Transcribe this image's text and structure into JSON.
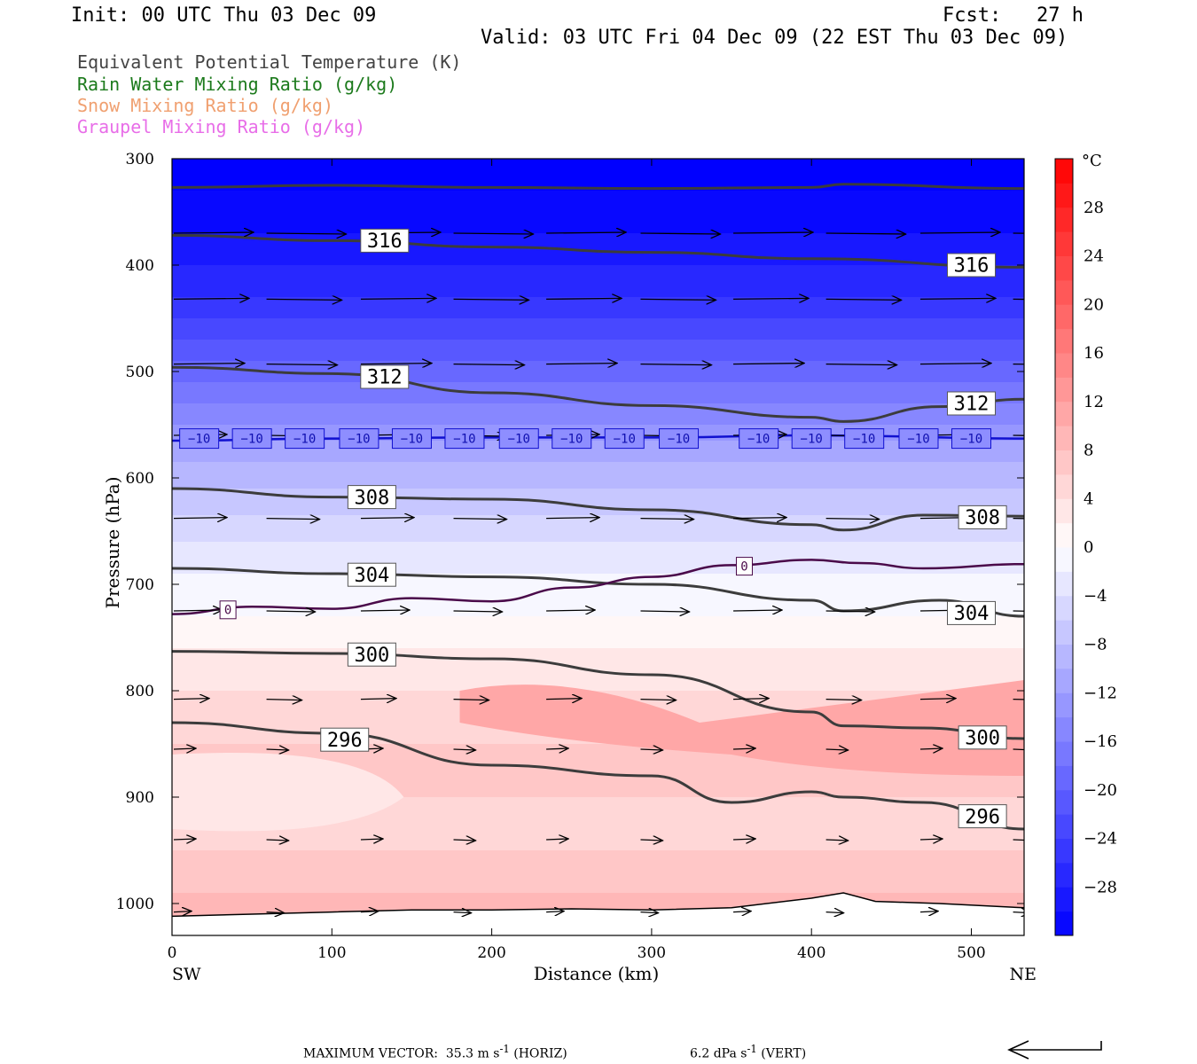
{
  "header": {
    "init": "Init: 00 UTC Thu 03 Dec 09",
    "fcst": "Fcst:   27 h",
    "valid": "Valid: 03 UTC Fri 04 Dec 09 (22 EST Thu 03 Dec 09)"
  },
  "legend": [
    {
      "label": "Equivalent Potential Temperature (K)",
      "color": "#444444"
    },
    {
      "label": "Rain Water Mixing Ratio (g/kg)",
      "color": "#1c7a1c"
    },
    {
      "label": "Snow Mixing Ratio (g/kg)",
      "color": "#f0a070"
    },
    {
      "label": "Graupel Mixing Ratio (g/kg)",
      "color": "#e86ee8"
    }
  ],
  "footer": {
    "max_vector_label": "MAXIMUM VECTOR:",
    "horiz_value": "35.3 m s",
    "horiz_suffix": "(HORIZ)",
    "vert_value": "6.2 dPa s",
    "vert_suffix": "(VERT)",
    "exponent": "-1"
  },
  "chart_data": {
    "type": "contour",
    "xlabel": "Distance (km)",
    "ylabel": "Pressure (hPa)",
    "x_ticks": [
      0,
      100,
      200,
      300,
      400,
      500
    ],
    "y_ticks": [
      300,
      400,
      500,
      600,
      700,
      800,
      900,
      1000
    ],
    "xlim": [
      0,
      533
    ],
    "ylim": [
      300,
      1030
    ],
    "x_end_labels": {
      "left": "SW",
      "right": "NE"
    },
    "colorbar": {
      "unit": "°C",
      "tick_labels": [
        "28",
        "24",
        "20",
        "16",
        "12",
        "8",
        "4",
        "0",
        "−4",
        "−8",
        "−12",
        "−16",
        "−20",
        "−24",
        "−28"
      ],
      "tick_values": [
        28,
        24,
        20,
        16,
        12,
        8,
        4,
        0,
        -4,
        -8,
        -12,
        -16,
        -20,
        -24,
        -28
      ],
      "levels": [
        -32,
        -30,
        -28,
        -26,
        -24,
        -22,
        -20,
        -18,
        -16,
        -14,
        -12,
        -10,
        -8,
        -6,
        -4,
        -2,
        0,
        2,
        4,
        6,
        8,
        10,
        12,
        14,
        16,
        18,
        20,
        22,
        24,
        26,
        28,
        30,
        32
      ]
    },
    "temperature_bands": [
      {
        "p": 300,
        "t": -33
      },
      {
        "p": 330,
        "t": -31
      },
      {
        "p": 370,
        "t": -29
      },
      {
        "p": 400,
        "t": -27
      },
      {
        "p": 430,
        "t": -25
      },
      {
        "p": 450,
        "t": -23
      },
      {
        "p": 470,
        "t": -21
      },
      {
        "p": 490,
        "t": -19
      },
      {
        "p": 510,
        "t": -17
      },
      {
        "p": 530,
        "t": -15
      },
      {
        "p": 550,
        "t": -13
      },
      {
        "p": 565,
        "t": -11
      },
      {
        "p": 585,
        "t": -9
      },
      {
        "p": 610,
        "t": -7
      },
      {
        "p": 635,
        "t": -5
      },
      {
        "p": 660,
        "t": -3
      },
      {
        "p": 690,
        "t": -1
      },
      {
        "p": 730,
        "t": 1
      },
      {
        "p": 760,
        "t": 3
      },
      {
        "p": 800,
        "t": 5
      },
      {
        "p": 850,
        "t": 7
      },
      {
        "p": 900,
        "t": 5
      },
      {
        "p": 950,
        "t": 7
      },
      {
        "p": 990,
        "t": 9
      },
      {
        "p": 1030,
        "t": 9
      }
    ],
    "theta_e_contours": [
      {
        "level": 320,
        "x": [
          0,
          100,
          200,
          300,
          400,
          420,
          533
        ],
        "p": [
          327,
          325,
          327,
          328,
          327,
          324,
          328
        ]
      },
      {
        "level": 316,
        "x": [
          0,
          100,
          200,
          300,
          400,
          533
        ],
        "p": [
          372,
          377,
          383,
          388,
          394,
          402
        ]
      },
      {
        "level": 312,
        "x": [
          0,
          100,
          200,
          300,
          400,
          420,
          480,
          533
        ],
        "p": [
          496,
          502,
          520,
          532,
          543,
          547,
          533,
          526
        ]
      },
      {
        "level": 308,
        "x": [
          0,
          100,
          200,
          300,
          400,
          420,
          470,
          533
        ],
        "p": [
          610,
          618,
          620,
          630,
          644,
          649,
          635,
          636
        ]
      },
      {
        "level": 304,
        "x": [
          0,
          100,
          200,
          300,
          400,
          420,
          480,
          533
        ],
        "p": [
          685,
          690,
          693,
          700,
          715,
          725,
          715,
          730
        ]
      },
      {
        "level": 300,
        "x": [
          0,
          100,
          200,
          300,
          400,
          420,
          470,
          533
        ],
        "p": [
          763,
          765,
          770,
          785,
          820,
          833,
          835,
          845
        ]
      },
      {
        "level": 296,
        "x": [
          0,
          100,
          200,
          300,
          350,
          400,
          420,
          470,
          533
        ],
        "p": [
          830,
          840,
          870,
          880,
          905,
          895,
          900,
          905,
          930
        ]
      }
    ],
    "theta_e_labels": [
      {
        "text": "316",
        "x": 133,
        "p": 377
      },
      {
        "text": "316",
        "x": 500,
        "p": 400
      },
      {
        "text": "312",
        "x": 133,
        "p": 505
      },
      {
        "text": "312",
        "x": 500,
        "p": 530
      },
      {
        "text": "308",
        "x": 125,
        "p": 618
      },
      {
        "text": "308",
        "x": 507,
        "p": 637
      },
      {
        "text": "304",
        "x": 125,
        "p": 691
      },
      {
        "text": "304",
        "x": 500,
        "p": 727
      },
      {
        "text": "300",
        "x": 125,
        "p": 766
      },
      {
        "text": "300",
        "x": 507,
        "p": 844
      },
      {
        "text": "296",
        "x": 108,
        "p": 846
      },
      {
        "text": "296",
        "x": 507,
        "p": 918
      }
    ],
    "isotherm_minus10": {
      "level": -10,
      "x": [
        0,
        100,
        200,
        300,
        400,
        533
      ],
      "p": [
        565,
        563,
        562,
        562,
        560,
        563
      ]
    },
    "isotherm_minus10_labels_x": [
      17,
      50,
      83,
      117,
      150,
      183,
      217,
      250,
      283,
      317,
      367,
      400,
      433,
      467,
      500
    ],
    "isotherm_minus10_label": "−10",
    "isotherm_0": {
      "level": 0,
      "x": [
        0,
        50,
        100,
        150,
        200,
        250,
        300,
        350,
        400,
        430,
        470,
        533
      ],
      "p": [
        728,
        721,
        723,
        713,
        716,
        703,
        693,
        682,
        677,
        680,
        685,
        681
      ]
    },
    "isotherm_0_labels": [
      {
        "text": "0",
        "x": 35,
        "p": 724
      },
      {
        "text": "0",
        "x": 358,
        "p": 683
      }
    ],
    "terrain": {
      "x": [
        0,
        50,
        100,
        150,
        200,
        250,
        300,
        350,
        400,
        420,
        440,
        480,
        533
      ],
      "p": [
        1012,
        1010,
        1008,
        1006,
        1006,
        1005,
        1006,
        1004,
        995,
        990,
        998,
        1000,
        1004
      ]
    },
    "wind_vectors": [
      {
        "p": 370,
        "x": [
          0,
          58,
          117,
          175,
          233,
          292,
          350,
          408,
          467,
          525
        ],
        "u": [
          1,
          1,
          1,
          1,
          1,
          1,
          1,
          1,
          1,
          1
        ],
        "len": 0.9
      },
      {
        "p": 432,
        "x": [
          0,
          58,
          117,
          175,
          233,
          292,
          350,
          408,
          467,
          525
        ],
        "u": [
          1,
          1,
          1,
          1,
          1,
          1,
          1,
          1,
          1,
          1
        ],
        "len": 0.85
      },
      {
        "p": 493,
        "x": [
          0,
          58,
          117,
          175,
          233,
          292,
          350,
          408,
          467,
          525
        ],
        "u": [
          1,
          1,
          1,
          1,
          1,
          1,
          1,
          1,
          1,
          1
        ],
        "len": 0.8
      },
      {
        "p": 560,
        "x": [
          0,
          58,
          117,
          175,
          233,
          292,
          350,
          408,
          467,
          525
        ],
        "u": [
          1,
          1,
          1,
          1,
          1,
          1,
          1,
          1,
          1,
          1
        ],
        "len": 0.6
      },
      {
        "p": 638,
        "x": [
          0,
          58,
          117,
          175,
          233,
          292,
          350,
          408,
          467,
          525
        ],
        "u": [
          1,
          1,
          1,
          1,
          1,
          1,
          1,
          1,
          1,
          1
        ],
        "len": 0.6
      },
      {
        "p": 725,
        "x": [
          0,
          58,
          117,
          175,
          233,
          292,
          350,
          408,
          467,
          525
        ],
        "u": [
          1,
          1,
          1,
          1,
          1,
          1,
          1,
          1,
          1,
          1
        ],
        "len": 0.55
      },
      {
        "p": 808,
        "x": [
          0,
          58,
          117,
          175,
          233,
          292,
          350,
          408,
          467,
          525
        ],
        "u": [
          1,
          1,
          1,
          1,
          1,
          1,
          1,
          1,
          1,
          1
        ],
        "len": 0.4
      },
      {
        "p": 855,
        "x": [
          0,
          58,
          117,
          175,
          233,
          292,
          350,
          408,
          467,
          525
        ],
        "u": [
          1,
          1,
          1,
          1,
          1,
          1,
          1,
          1,
          1,
          1
        ],
        "len": 0.25
      },
      {
        "p": 940,
        "x": [
          0,
          58,
          117,
          175,
          233,
          292,
          350,
          408,
          467,
          525
        ],
        "u": [
          1,
          1,
          1,
          1,
          1,
          1,
          1,
          1,
          1,
          1
        ],
        "len": 0.25
      },
      {
        "p": 1008,
        "x": [
          0,
          58,
          117,
          175,
          233,
          292,
          350,
          408,
          467,
          525
        ],
        "u": [
          1,
          1,
          1,
          1,
          1,
          1,
          1,
          1,
          1,
          1
        ],
        "len": 0.2
      }
    ]
  }
}
